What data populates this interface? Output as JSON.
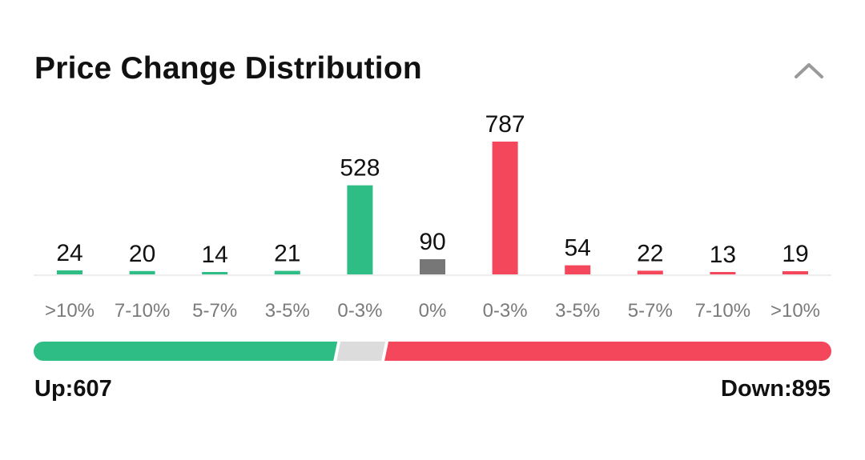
{
  "header": {
    "title": "Price Change Distribution",
    "collapse_icon": "chevron-up-icon"
  },
  "colors": {
    "up": "#2ebd85",
    "flat": "#777777",
    "down": "#f5475c",
    "neutral_segment": "#dcdcdc",
    "axis": "#eeeeee"
  },
  "chart_data": {
    "type": "bar",
    "categories": [
      ">10%",
      "7-10%",
      "5-7%",
      "3-5%",
      "0-3%",
      "0%",
      "0-3%",
      "3-5%",
      "5-7%",
      "7-10%",
      ">10%"
    ],
    "values": [
      24,
      20,
      14,
      21,
      528,
      90,
      787,
      54,
      22,
      13,
      19
    ],
    "groups": [
      "up",
      "up",
      "up",
      "up",
      "up",
      "flat",
      "down",
      "down",
      "down",
      "down",
      "down"
    ],
    "title": "Price Change Distribution",
    "xlabel": "",
    "ylabel": "",
    "ylim": [
      0,
      787
    ],
    "grid": false,
    "legend": "none"
  },
  "summary": {
    "up_label": "Up:607",
    "down_label": "Down:895",
    "up_count": 607,
    "flat_count": 90,
    "down_count": 895
  }
}
